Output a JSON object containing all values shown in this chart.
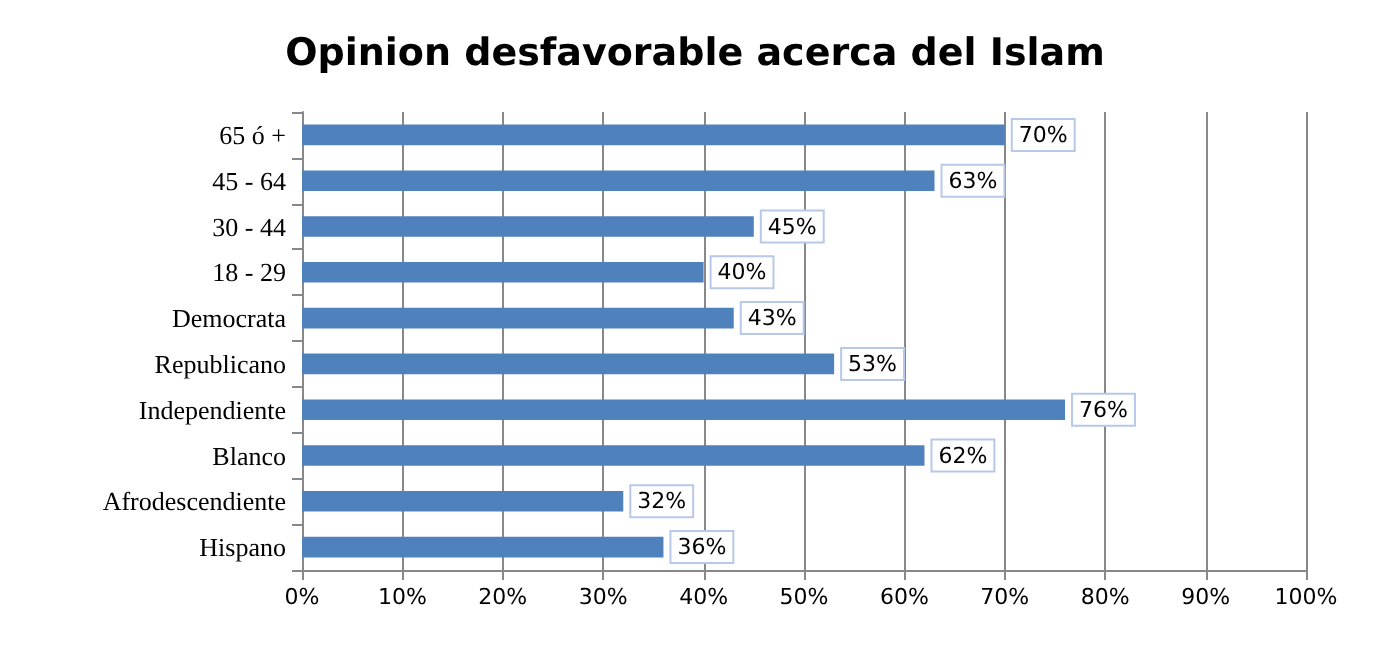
{
  "chart_data": {
    "type": "bar",
    "orientation": "horizontal",
    "title": "Opinion desfavorable acerca del Islam",
    "categories": [
      "65 ó +",
      "45 - 64",
      "30 - 44",
      "18 - 29",
      "Democrata",
      "Republicano",
      "Independiente",
      "Blanco",
      "Afrodescendiente",
      "Hispano"
    ],
    "values": [
      70,
      63,
      45,
      40,
      43,
      53,
      76,
      62,
      32,
      36
    ],
    "value_labels": [
      "70%",
      "63%",
      "45%",
      "40%",
      "43%",
      "53%",
      "76%",
      "62%",
      "32%",
      "36%"
    ],
    "color": "#4f81bd",
    "xlim": [
      0,
      100
    ],
    "xticks": [
      {
        "value": 0,
        "label": "0%"
      },
      {
        "value": 10,
        "label": "10%"
      },
      {
        "value": 20,
        "label": "20%"
      },
      {
        "value": 30,
        "label": "30%"
      },
      {
        "value": 40,
        "label": "40%"
      },
      {
        "value": 50,
        "label": "50%"
      },
      {
        "value": 60,
        "label": "60%"
      },
      {
        "value": 70,
        "label": "70%"
      },
      {
        "value": 80,
        "label": "80%"
      },
      {
        "value": 90,
        "label": "90%"
      },
      {
        "value": 100,
        "label": "100%"
      }
    ],
    "grid": "x"
  }
}
